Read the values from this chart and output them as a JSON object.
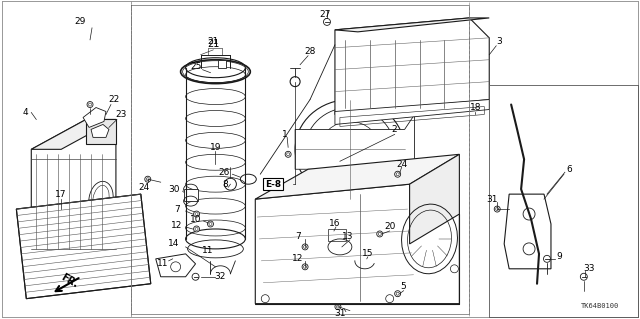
{
  "bg_color": "#ffffff",
  "diagram_code": "TK64B0100",
  "image_b64": ""
}
